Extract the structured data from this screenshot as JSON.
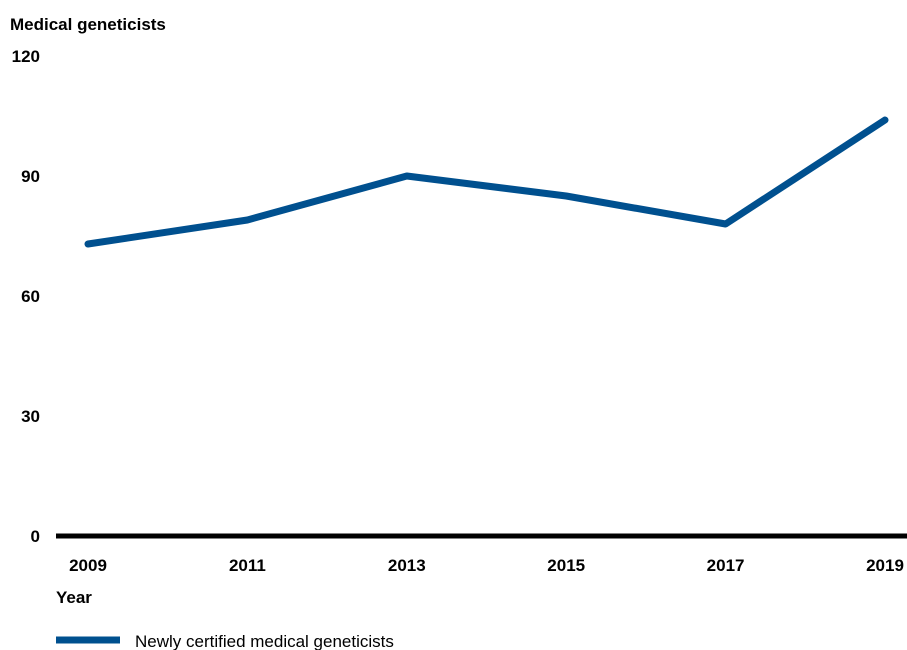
{
  "chart_data": {
    "type": "line",
    "ylabel": "Medical geneticists",
    "xlabel": "Year",
    "x": [
      "2009",
      "2011",
      "2013",
      "2015",
      "2017",
      "2019"
    ],
    "y_ticks": [
      "0",
      "30",
      "60",
      "90",
      "120"
    ],
    "ylim": [
      0,
      120
    ],
    "series": [
      {
        "name": "Newly certified medical geneticists",
        "values": [
          73,
          79,
          90,
          85,
          78,
          104
        ]
      }
    ],
    "grid": false,
    "legend_position": "bottom-left",
    "colors": {
      "series": "#00508f",
      "axis": "#000000",
      "text": "#000000"
    }
  }
}
